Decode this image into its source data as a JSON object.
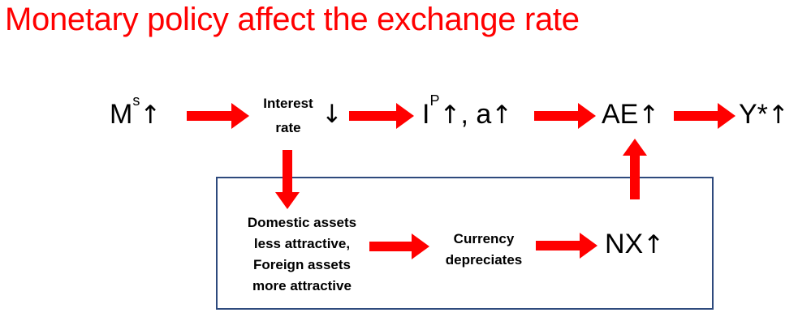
{
  "title": "Monetary policy affect the exchange rate",
  "nodes": {
    "ms": {
      "base": "M",
      "sup": "s",
      "arrow": "↑"
    },
    "interest_rate": {
      "line1": "Interest",
      "line2": "rate",
      "arrow": "↓"
    },
    "ip_a": {
      "base1": "I",
      "sup": "P",
      "arrow1": "↑",
      "sep": ", a",
      "arrow2": "↑"
    },
    "ae": {
      "base": "AE",
      "arrow": "↑"
    },
    "ystar": {
      "base": "Y*",
      "arrow": "↑"
    },
    "assets": {
      "line1": "Domestic assets",
      "line2": "less attractive,",
      "line3": "Foreign assets",
      "line4": "more attractive"
    },
    "currency": {
      "line1": "Currency",
      "line2": "depreciates"
    },
    "nx": {
      "base": "NX",
      "arrow": "↑"
    }
  },
  "colors": {
    "title": "#ff0000",
    "arrow_fill": "#ff0000",
    "box_border": "#2e4a7d",
    "text": "#000000"
  }
}
